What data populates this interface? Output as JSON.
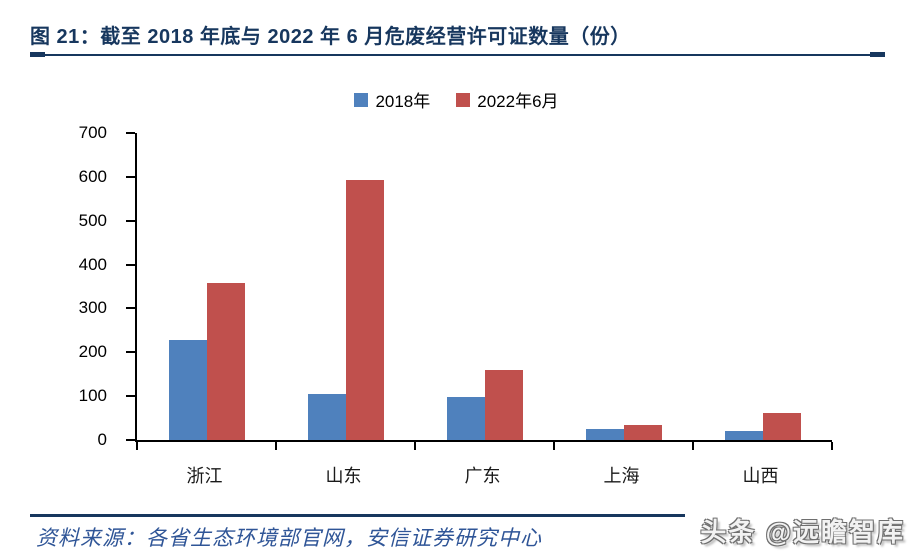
{
  "header": {
    "title": "图 21：截至 2018 年底与 2022 年 6 月危废经营许可证数量（份）"
  },
  "chart_data": {
    "type": "bar",
    "title": "截至 2018 年底与 2022 年 6 月危废经营许可证数量（份）",
    "categories": [
      "浙江",
      "山东",
      "广东",
      "上海",
      "山西"
    ],
    "series": [
      {
        "name": "2018年",
        "color": "#4f81bd",
        "values": [
          228,
          105,
          98,
          25,
          21
        ]
      },
      {
        "name": "2022年6月",
        "color": "#c0504d",
        "values": [
          358,
          593,
          160,
          34,
          62
        ]
      }
    ],
    "xlabel": "",
    "ylabel": "",
    "ylim": [
      0,
      700
    ],
    "yticks": [
      0,
      100,
      200,
      300,
      400,
      500,
      600,
      700
    ],
    "grid": false,
    "legend_position": "top-center"
  },
  "footer": {
    "source_label": "资料来源：各省生态环境部官网，安信证券研究中心",
    "watermark": "头条 @远瞻智库"
  },
  "colors": {
    "accent_navy": "#17375e",
    "bar_blue": "#4f81bd",
    "bar_red": "#c0504d",
    "footer_text": "#2f5597"
  }
}
